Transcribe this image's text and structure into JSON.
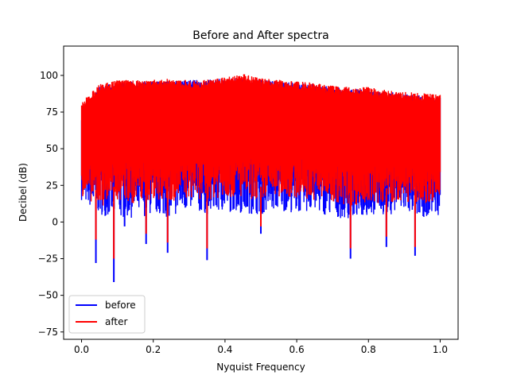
{
  "chart_data": {
    "type": "line",
    "title": "Before and After spectra",
    "xlabel": "Nyquist Frequency",
    "ylabel": "Decibel (dB)",
    "xlim": [
      -0.05,
      1.05
    ],
    "ylim": [
      -80,
      120
    ],
    "xticks": [
      0.0,
      0.2,
      0.4,
      0.6,
      0.8,
      1.0
    ],
    "xtick_labels": [
      "0.0",
      "0.2",
      "0.4",
      "0.6",
      "0.8",
      "1.0"
    ],
    "yticks": [
      -75,
      -50,
      -25,
      0,
      25,
      50,
      75,
      100
    ],
    "ytick_labels": [
      "−75",
      "−50",
      "−25",
      "0",
      "25",
      "50",
      "75",
      "100"
    ],
    "grid": false,
    "legend_position": "lower-left",
    "series": [
      {
        "name": "before",
        "color": "#0000ff",
        "x": [
          0.0,
          0.05,
          0.1,
          0.15,
          0.2,
          0.25,
          0.3,
          0.35,
          0.4,
          0.45,
          0.5,
          0.55,
          0.6,
          0.65,
          0.7,
          0.75,
          0.8,
          0.85,
          0.9,
          0.95,
          1.0
        ],
        "upper": [
          75,
          93,
          95,
          96,
          96,
          96,
          97,
          97,
          98,
          98,
          97,
          96,
          95,
          94,
          92,
          91,
          90,
          89,
          88,
          86,
          85
        ],
        "lower": [
          15,
          5,
          2,
          3,
          5,
          3,
          8,
          5,
          7,
          6,
          5,
          8,
          6,
          7,
          3,
          2,
          4,
          5,
          6,
          3,
          5
        ],
        "dips": [
          [
            0.04,
            -28
          ],
          [
            0.09,
            -41
          ],
          [
            0.12,
            -3
          ],
          [
            0.18,
            -15
          ],
          [
            0.24,
            -21
          ],
          [
            0.35,
            -26
          ],
          [
            0.5,
            -8
          ],
          [
            0.75,
            -25
          ],
          [
            0.85,
            -17
          ],
          [
            0.93,
            -23
          ]
        ]
      },
      {
        "name": "after",
        "color": "#ff0000",
        "x": [
          0.0,
          0.05,
          0.1,
          0.15,
          0.2,
          0.25,
          0.3,
          0.35,
          0.4,
          0.45,
          0.5,
          0.55,
          0.6,
          0.65,
          0.7,
          0.75,
          0.8,
          0.85,
          0.9,
          0.95,
          1.0
        ],
        "upper": [
          82,
          94,
          97,
          97,
          97,
          98,
          97,
          97,
          99,
          101,
          98,
          97,
          96,
          95,
          93,
          92,
          92,
          90,
          89,
          88,
          87
        ],
        "lower": [
          18,
          10,
          15,
          12,
          15,
          14,
          16,
          15,
          17,
          16,
          14,
          17,
          16,
          15,
          12,
          11,
          12,
          13,
          14,
          11,
          12
        ],
        "dips": [
          [
            0.04,
            -12
          ],
          [
            0.09,
            -25
          ],
          [
            0.18,
            -8
          ],
          [
            0.24,
            -14
          ],
          [
            0.35,
            -18
          ],
          [
            0.5,
            -3
          ],
          [
            0.75,
            -18
          ],
          [
            0.85,
            -10
          ],
          [
            0.93,
            -17
          ]
        ]
      }
    ]
  }
}
